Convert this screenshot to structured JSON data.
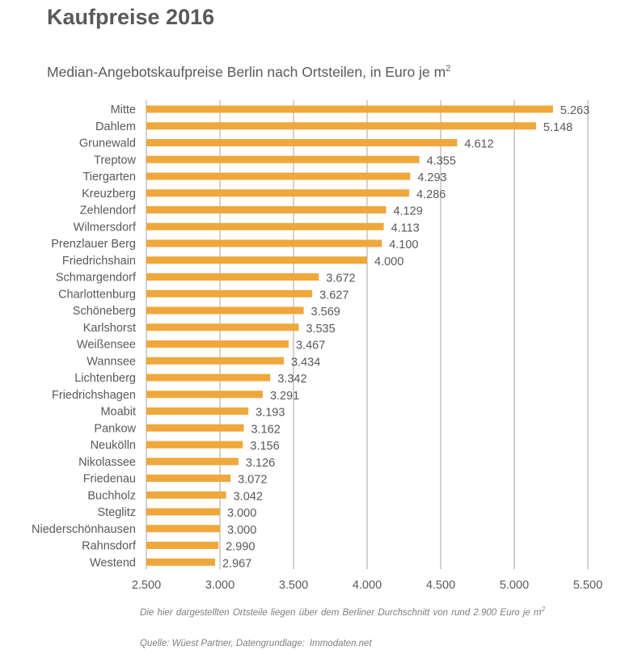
{
  "header": {
    "title": "Kaufpreise 2016",
    "subtitle": "Median-Angebotskaufpreise  Berlin  nach  Ortsteilen,  in  Euro  je  m",
    "subtitle_sup": "2"
  },
  "footer": {
    "note": "Die  hier  dargestellten  Ortsteile  liegen  über dem  Berliner  Durchschnitt  von  rund  2.900  Euro  je  m",
    "note_sup": "2",
    "source_a": "Quelle:  Wüest Partner,  Datengrundlage:",
    "source_b": "Immodaten.net"
  },
  "colors": {
    "bar": "#F0A73B",
    "grid": "#A6A6A6",
    "text": "#595959"
  },
  "chart_data": {
    "type": "bar",
    "orientation": "horizontal",
    "title": "Kaufpreise 2016",
    "xlabel": "",
    "ylabel": "",
    "xlim": [
      2500,
      5500
    ],
    "xticks": [
      2500,
      3000,
      3500,
      4000,
      4500,
      5000,
      5500
    ],
    "xtick_labels": [
      "2.500",
      "3.000",
      "3.500",
      "4.000",
      "4.500",
      "5.000",
      "5.500"
    ],
    "grid": true,
    "categories": [
      "Mitte",
      "Dahlem",
      "Grunewald",
      "Treptow",
      "Tiergarten",
      "Kreuzberg",
      "Zehlendorf",
      "Wilmersdorf",
      "Prenzlauer Berg",
      "Friedrichshain",
      "Schmargendorf",
      "Charlottenburg",
      "Schöneberg",
      "Karlshorst",
      "Weißensee",
      "Wannsee",
      "Lichtenberg",
      "Friedrichshagen",
      "Moabit",
      "Pankow",
      "Neukölln",
      "Nikolassee",
      "Friedenau",
      "Buchholz",
      "Steglitz",
      "Niederschönhausen",
      "Rahnsdorf",
      "Westend"
    ],
    "values": [
      5263,
      5148,
      4612,
      4355,
      4293,
      4286,
      4129,
      4113,
      4100,
      4000,
      3672,
      3627,
      3569,
      3535,
      3467,
      3434,
      3342,
      3291,
      3193,
      3162,
      3156,
      3126,
      3072,
      3042,
      3000,
      3000,
      2990,
      2967
    ],
    "value_labels": [
      "5.263",
      "5.148",
      "4.612",
      "4.355",
      "4.293",
      "4.286",
      "4.129",
      "4.113",
      "4.100",
      "4.000",
      "3.672",
      "3.627",
      "3.569",
      "3.535",
      "3.467",
      "3.434",
      "3.342",
      "3.291",
      "3.193",
      "3.162",
      "3.156",
      "3.126",
      "3.072",
      "3.042",
      "3.000",
      "3.000",
      "2.990",
      "2.967"
    ]
  }
}
